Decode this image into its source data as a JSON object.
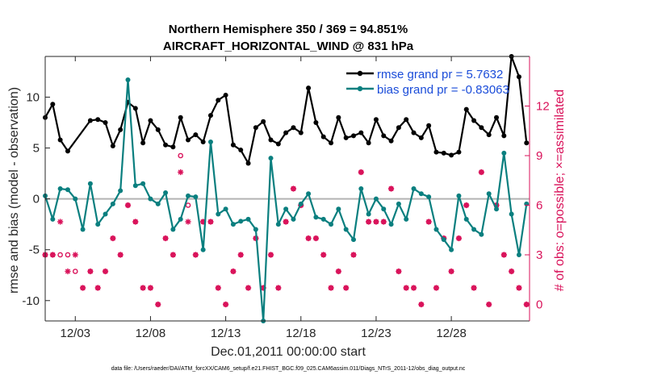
{
  "chart_data": {
    "type": "line",
    "title": "Northern Hemisphere 350 / 369 = 94.851%",
    "subtitle": "AIRCRAFT_HORIZONTAL_WIND @ 831 hPa",
    "xlabel": "Dec.01,2011 00:00:00 start",
    "ylabel": "rmse and bias (model - observation)",
    "y2label": "# of obs: o=possible; ×=assimilated",
    "footnote": "data file: /Users/raeder/DAI/ATM_forcXX/CAM6_setup/f.e21.FHIST_BGC.f09_025.CAM6assim.011/Diags_NTrS_2011-12/obs_diag_output.nc",
    "xlim": [
      1,
      33.2
    ],
    "ylim": [
      -12,
      14
    ],
    "y2lim": [
      -1,
      15
    ],
    "xticks": [
      {
        "value": 3,
        "label": "12/03"
      },
      {
        "value": 8,
        "label": "12/08"
      },
      {
        "value": 13,
        "label": "12/13"
      },
      {
        "value": 18,
        "label": "12/18"
      },
      {
        "value": 23,
        "label": "12/23"
      },
      {
        "value": 28,
        "label": "12/28"
      }
    ],
    "yticks": [
      -10,
      -5,
      0,
      5,
      10
    ],
    "y2ticks": [
      0,
      3,
      6,
      9,
      12
    ],
    "grid": false,
    "legend_position": "top-right",
    "colors": {
      "rmse": "#000000",
      "bias": "#0a7f7f",
      "obs": "#d9125a",
      "zero": "#b3b3b3",
      "legend_text": "#1a4cd9",
      "axis": "#262626"
    },
    "series": [
      {
        "name": "rmse grand pr = 5.7632",
        "key": "rmse",
        "x": [
          1.0,
          1.5,
          2.0,
          2.5,
          4.0,
          4.5,
          5.0,
          5.5,
          6.0,
          6.5,
          7.0,
          7.5,
          8.0,
          8.5,
          9.0,
          9.5,
          10.0,
          10.5,
          11.0,
          11.5,
          12.0,
          12.5,
          13.0,
          13.5,
          14.0,
          14.5,
          15.0,
          15.5,
          16.0,
          16.5,
          17.0,
          17.5,
          18.0,
          18.5,
          19.0,
          19.5,
          20.0,
          20.5,
          21.0,
          21.5,
          22.0,
          22.5,
          23.0,
          23.5,
          24.0,
          24.5,
          25.0,
          25.5,
          26.0,
          26.5,
          27.0,
          27.5,
          28.0,
          28.5,
          29.0,
          29.5,
          30.0,
          30.5,
          31.0,
          31.5,
          32.0,
          32.5,
          33.0
        ],
        "y": [
          8.0,
          9.3,
          5.8,
          4.7,
          7.7,
          7.8,
          7.5,
          5.2,
          6.8,
          9.5,
          8.9,
          5.5,
          7.7,
          6.8,
          5.3,
          5.1,
          8.0,
          5.8,
          6.3,
          5.6,
          8.2,
          9.7,
          10.2,
          5.3,
          4.8,
          3.5,
          7.0,
          7.6,
          5.8,
          5.4,
          6.5,
          7.0,
          6.5,
          10.9,
          7.5,
          6.1,
          5.5,
          8.0,
          6.0,
          6.2,
          6.5,
          5.5,
          7.8,
          6.2,
          5.7,
          7.0,
          7.8,
          6.5,
          6.0,
          7.2,
          4.6,
          4.5,
          4.3,
          4.6,
          8.8,
          7.7,
          7.0,
          6.3,
          8.0,
          6.2,
          14.0,
          12.0,
          5.5
        ]
      },
      {
        "name": "bias grand pr = -0.83063",
        "key": "bias",
        "x": [
          1.0,
          1.5,
          2.0,
          2.5,
          3.0,
          3.5,
          4.0,
          4.5,
          5.0,
          5.5,
          6.0,
          6.5,
          7.0,
          7.5,
          8.0,
          8.5,
          9.0,
          9.5,
          10.0,
          10.5,
          11.0,
          11.5,
          12.0,
          12.5,
          13.0,
          13.5,
          14.0,
          14.5,
          15.0,
          15.5,
          16.0,
          16.5,
          17.0,
          17.5,
          18.0,
          18.5,
          19.0,
          19.5,
          20.0,
          20.5,
          21.0,
          21.5,
          22.0,
          22.5,
          23.0,
          23.5,
          24.0,
          24.5,
          25.0,
          25.5,
          26.0,
          26.5,
          27.0,
          27.5,
          28.0,
          28.5,
          29.0,
          29.5,
          30.0,
          30.5,
          31.0,
          31.5,
          32.0,
          32.5,
          33.0
        ],
        "y": [
          0.3,
          -2.0,
          1.0,
          0.9,
          0.0,
          -3.0,
          1.5,
          -2.5,
          -1.5,
          -0.5,
          0.8,
          11.7,
          1.3,
          1.5,
          0.0,
          -0.5,
          0.6,
          -3.0,
          -2.0,
          0.3,
          0.2,
          -5.0,
          5.6,
          -1.5,
          -1.0,
          -2.5,
          -2.2,
          -2.0,
          -3.0,
          -12.0,
          4.0,
          -2.5,
          -1.0,
          -2.0,
          -0.5,
          0.5,
          -1.8,
          -2.0,
          -2.5,
          -1.0,
          -3.0,
          -4.0,
          1.0,
          -1.5,
          0.0,
          -1.0,
          -2.5,
          -0.5,
          -2.0,
          1.0,
          0.5,
          0.2,
          -3.0,
          -4.0,
          -5.0,
          0.3,
          -2.0,
          -3.0,
          -3.5,
          0.5,
          -1.0,
          4.5,
          -1.5,
          -5.5,
          -0.5
        ]
      }
    ],
    "obs_possible": {
      "name": "o=possible",
      "x": [
        1.0,
        1.5,
        2.0,
        2.5,
        3.0,
        3.5,
        4.0,
        4.5,
        5.0,
        5.5,
        6.0,
        6.5,
        7.0,
        7.5,
        8.0,
        8.5,
        9.0,
        9.5,
        10.0,
        10.5,
        11.0,
        11.5,
        12.0,
        12.5,
        13.0,
        13.5,
        14.0,
        14.5,
        15.0,
        15.5,
        16.0,
        16.5,
        17.0,
        17.5,
        18.0,
        18.5,
        19.0,
        19.5,
        20.0,
        20.5,
        21.0,
        21.5,
        22.0,
        22.5,
        23.0,
        23.5,
        24.0,
        24.5,
        25.0,
        25.5,
        26.0,
        26.5,
        27.0,
        27.5,
        28.0,
        28.5,
        29.0,
        29.5,
        30.0,
        30.5,
        31.0,
        31.5,
        32.0,
        32.5,
        33.0
      ],
      "y": [
        3,
        3,
        3,
        3,
        2,
        1,
        2,
        1,
        2,
        4,
        3,
        6,
        5,
        1,
        1,
        0,
        4,
        3,
        9,
        6,
        3,
        5,
        5,
        1,
        0,
        2,
        3,
        1,
        4,
        1,
        3,
        1,
        5,
        7,
        6,
        4,
        4,
        3,
        1,
        2,
        1,
        3,
        8,
        5,
        5,
        5,
        7,
        2,
        1,
        1,
        0,
        5,
        1,
        4,
        2,
        4,
        6,
        1,
        8,
        0,
        6,
        3,
        2,
        1,
        0
      ]
    },
    "obs_assimilated": {
      "name": "×=assimilated",
      "x": [
        1.0,
        1.5,
        2.0,
        2.5,
        3.0,
        3.5,
        4.0,
        4.5,
        5.0,
        5.5,
        6.0,
        6.5,
        7.0,
        7.5,
        8.0,
        8.5,
        9.0,
        9.5,
        10.0,
        10.5,
        11.0,
        11.5,
        12.0,
        12.5,
        13.0,
        13.5,
        14.0,
        14.5,
        15.0,
        15.5,
        16.0,
        16.5,
        17.0,
        17.5,
        18.0,
        18.5,
        19.0,
        19.5,
        20.0,
        20.5,
        21.0,
        21.5,
        22.0,
        22.5,
        23.0,
        23.5,
        24.0,
        24.5,
        25.0,
        25.5,
        26.0,
        26.5,
        27.0,
        27.5,
        28.0,
        28.5,
        29.0,
        29.5,
        30.0,
        30.5,
        31.0,
        31.5,
        32.0,
        32.5,
        33.0
      ],
      "y": [
        3,
        3,
        5,
        2,
        3,
        1,
        2,
        1,
        2,
        4,
        3,
        6,
        5,
        1,
        1,
        0,
        4,
        3,
        8,
        5,
        3,
        5,
        5,
        1,
        0,
        2,
        3,
        1,
        4,
        1,
        3,
        1,
        5,
        7,
        6,
        4,
        4,
        3,
        1,
        2,
        1,
        3,
        8,
        5,
        5,
        5,
        7,
        2,
        1,
        1,
        0,
        5,
        1,
        4,
        2,
        4,
        6,
        1,
        8,
        0,
        6,
        3,
        2,
        1,
        0
      ]
    }
  }
}
